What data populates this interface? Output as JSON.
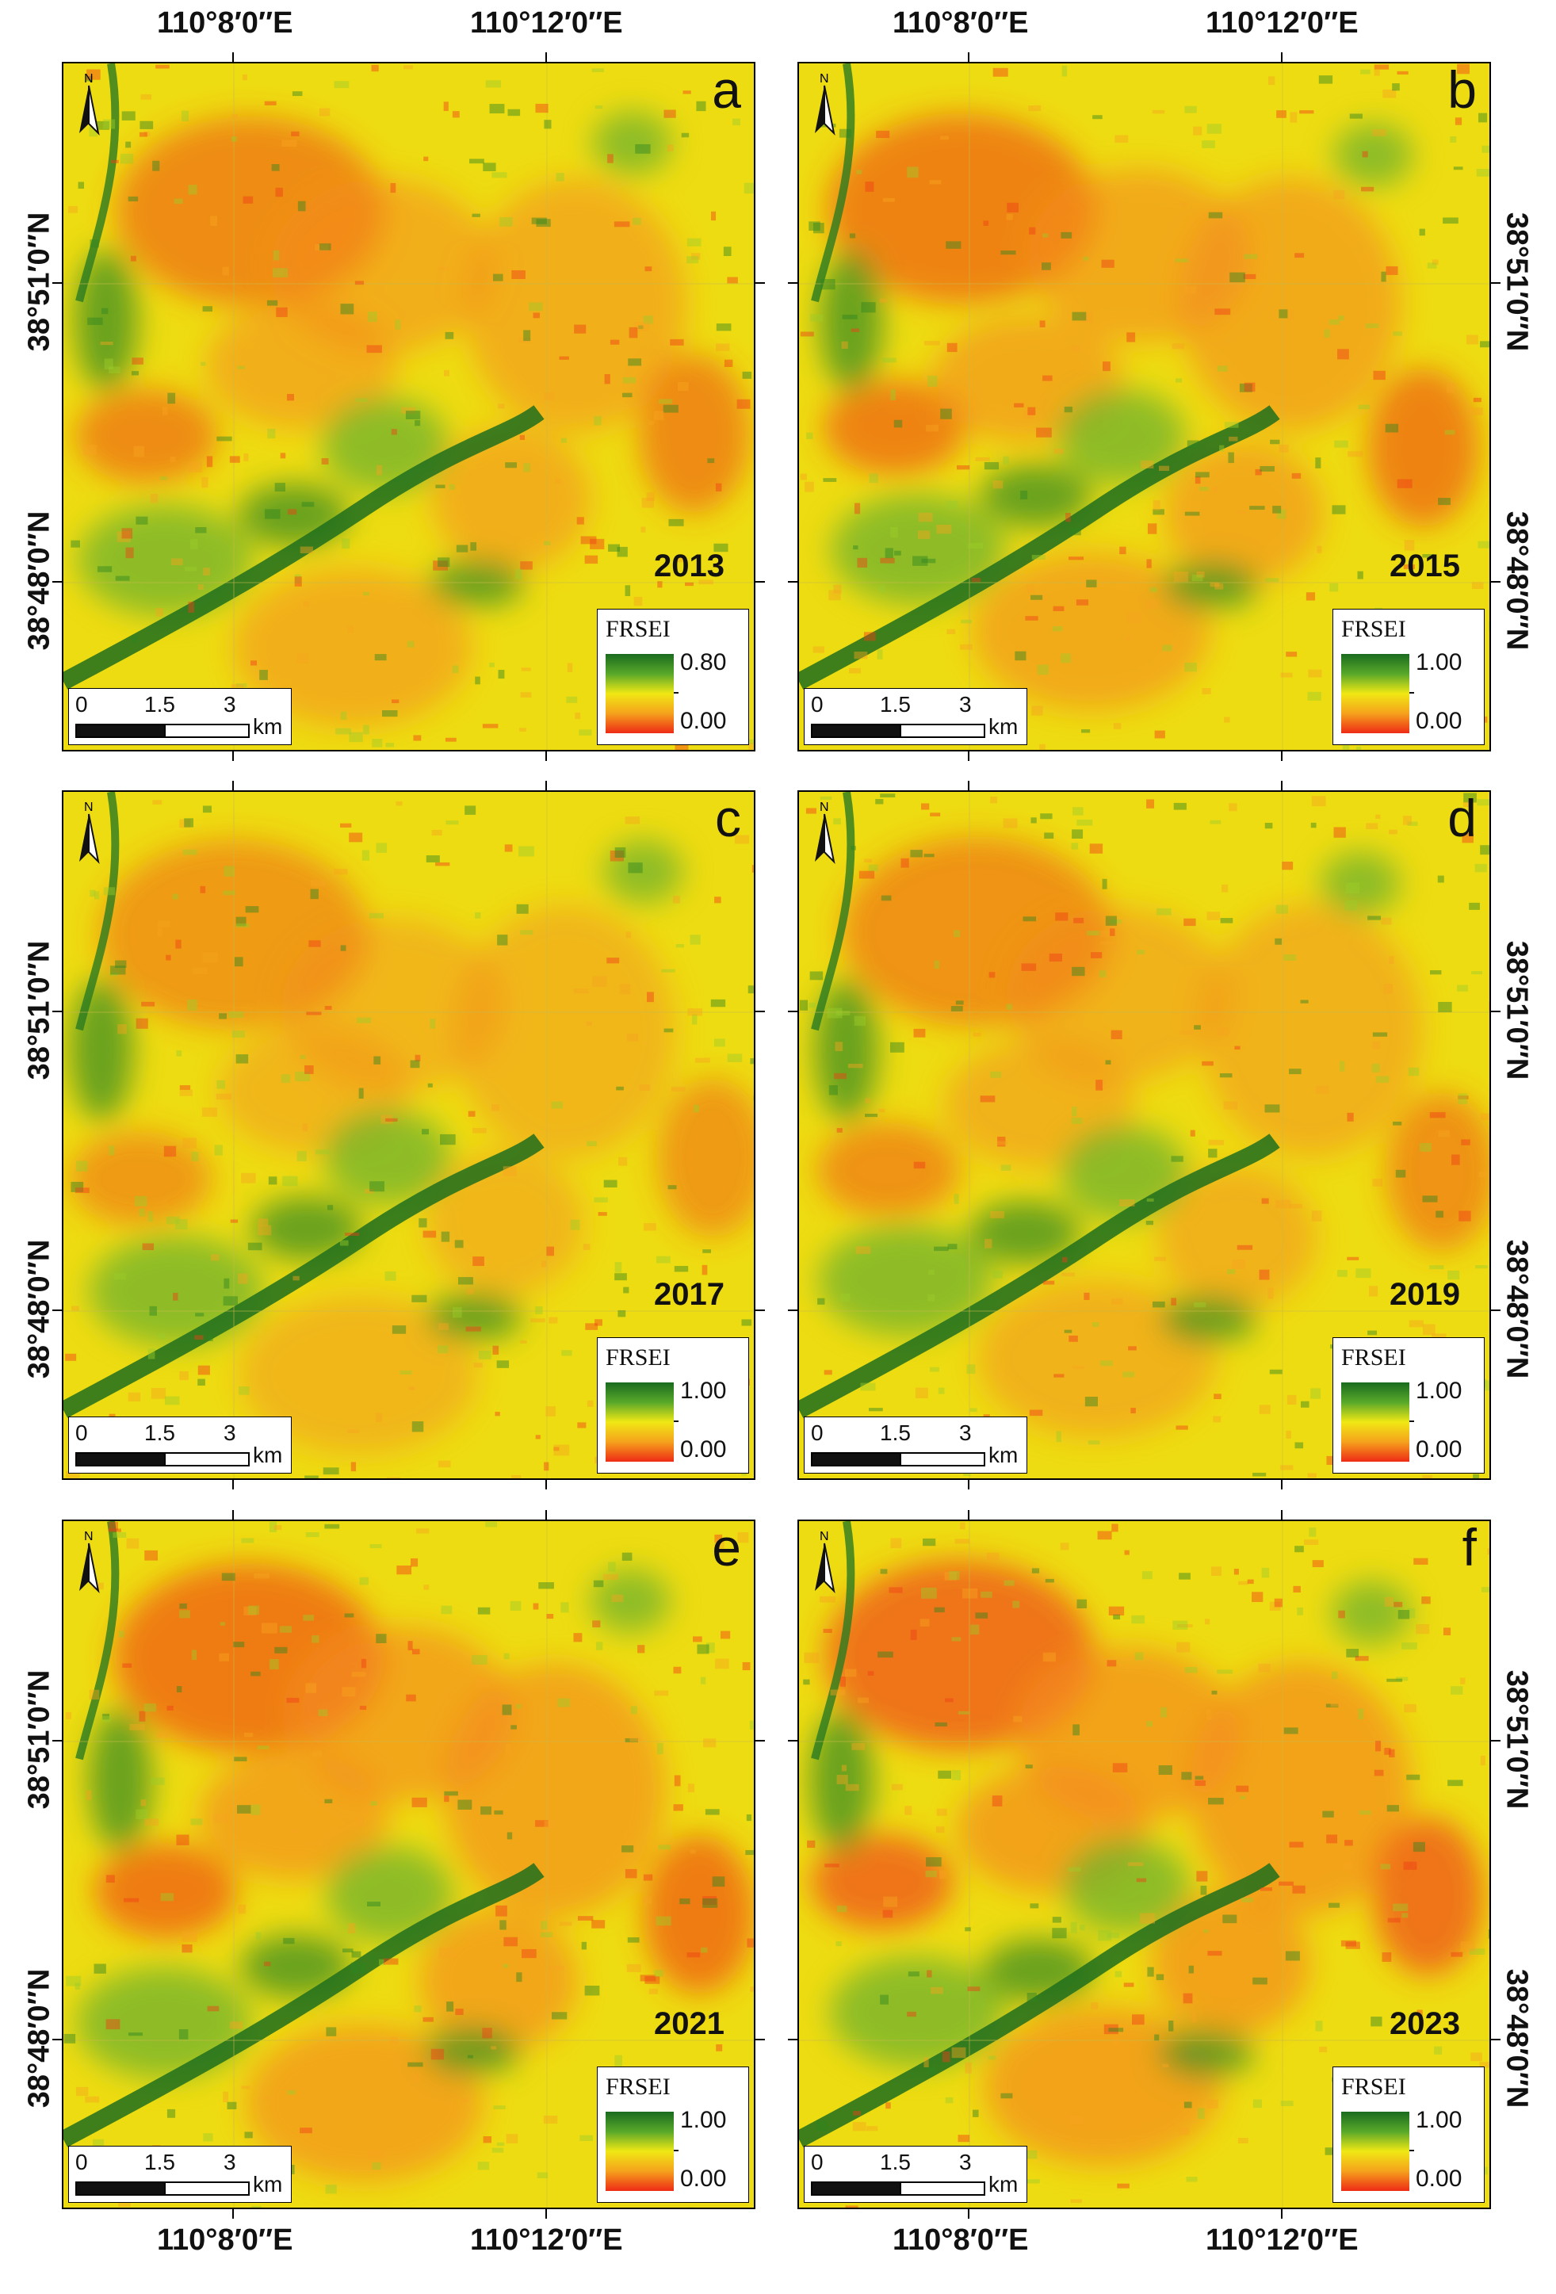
{
  "axes": {
    "lon_labels": [
      "110°8′0″E",
      "110°12′0″E"
    ],
    "lat_labels": [
      "38°51′0″N",
      "38°48′0″N"
    ]
  },
  "scalebar": {
    "ticks": [
      "0",
      "1.5",
      "3"
    ],
    "unit": "km"
  },
  "legend": {
    "title": "FRSEI",
    "min_label": "0.00",
    "colors": [
      "#1a6b1f",
      "#58a82a",
      "#f0e814",
      "#f5a21c",
      "#ee2b16"
    ]
  },
  "panels": [
    {
      "letter": "a",
      "year": "2013",
      "legend_max": "0.80"
    },
    {
      "letter": "b",
      "year": "2015",
      "legend_max": "1.00"
    },
    {
      "letter": "c",
      "year": "2017",
      "legend_max": "1.00"
    },
    {
      "letter": "d",
      "year": "2019",
      "legend_max": "1.00"
    },
    {
      "letter": "e",
      "year": "2021",
      "legend_max": "1.00"
    },
    {
      "letter": "f",
      "year": "2023",
      "legend_max": "1.00"
    }
  ]
}
